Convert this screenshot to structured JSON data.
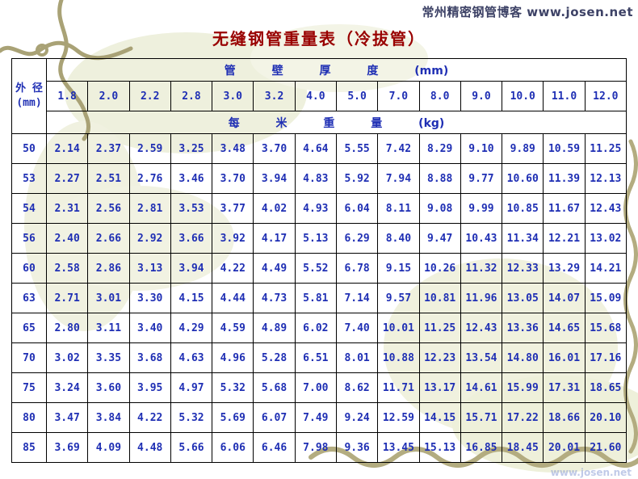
{
  "header": {
    "blog": "常州精密钢管博客 www.josen.net"
  },
  "title": "无缝钢管重量表（冷拔管）",
  "watermark": "www.josen.net",
  "colors": {
    "table_text": "#1f2fb4",
    "title_red": "#990000",
    "header_text": "#3d4266",
    "vine_olive": "#a9a276",
    "wash_beige": "#eef0dd"
  },
  "table": {
    "od_label": "外 径",
    "od_unit": "(mm)",
    "thickness_title": "管 壁 厚 度 (mm)",
    "weight_title": "每 米 重 量 (kg)",
    "thicknesses": [
      "1.8",
      "2.0",
      "2.2",
      "2.8",
      "3.0",
      "3.2",
      "4.0",
      "5.0",
      "7.0",
      "8.0",
      "9.0",
      "10.0",
      "11.0",
      "12.0"
    ],
    "rows": [
      {
        "od": "50",
        "values": [
          "2.14",
          "2.37",
          "2.59",
          "3.25",
          "3.48",
          "3.70",
          "4.64",
          "5.55",
          "7.42",
          "8.29",
          "9.10",
          "9.89",
          "10.59",
          "11.25"
        ]
      },
      {
        "od": "53",
        "values": [
          "2.27",
          "2.51",
          "2.76",
          "3.46",
          "3.70",
          "3.94",
          "4.83",
          "5.92",
          "7.94",
          "8.88",
          "9.77",
          "10.60",
          "11.39",
          "12.13"
        ]
      },
      {
        "od": "54",
        "values": [
          "2.31",
          "2.56",
          "2.81",
          "3.53",
          "3.77",
          "4.02",
          "4.93",
          "6.04",
          "8.11",
          "9.08",
          "9.99",
          "10.85",
          "11.67",
          "12.43"
        ]
      },
      {
        "od": "56",
        "values": [
          "2.40",
          "2.66",
          "2.92",
          "3.66",
          "3.92",
          "4.17",
          "5.13",
          "6.29",
          "8.40",
          "9.47",
          "10.43",
          "11.34",
          "12.21",
          "13.02"
        ]
      },
      {
        "od": "60",
        "values": [
          "2.58",
          "2.86",
          "3.13",
          "3.94",
          "4.22",
          "4.49",
          "5.52",
          "6.78",
          "9.15",
          "10.26",
          "11.32",
          "12.33",
          "13.29",
          "14.21"
        ]
      },
      {
        "od": "63",
        "values": [
          "2.71",
          "3.01",
          "3.30",
          "4.15",
          "4.44",
          "4.73",
          "5.81",
          "7.14",
          "9.57",
          "10.81",
          "11.96",
          "13.05",
          "14.07",
          "15.09"
        ]
      },
      {
        "od": "65",
        "values": [
          "2.80",
          "3.11",
          "3.40",
          "4.29",
          "4.59",
          "4.89",
          "6.02",
          "7.40",
          "10.01",
          "11.25",
          "12.43",
          "13.36",
          "14.65",
          "15.68"
        ]
      },
      {
        "od": "70",
        "values": [
          "3.02",
          "3.35",
          "3.68",
          "4.63",
          "4.96",
          "5.28",
          "6.51",
          "8.01",
          "10.88",
          "12.23",
          "13.54",
          "14.80",
          "16.01",
          "17.16"
        ]
      },
      {
        "od": "75",
        "values": [
          "3.24",
          "3.60",
          "3.95",
          "4.97",
          "5.32",
          "5.68",
          "7.00",
          "8.62",
          "11.71",
          "13.17",
          "14.61",
          "15.99",
          "17.31",
          "18.65"
        ]
      },
      {
        "od": "80",
        "values": [
          "3.47",
          "3.84",
          "4.22",
          "5.32",
          "5.69",
          "6.07",
          "7.49",
          "9.24",
          "12.59",
          "14.15",
          "15.71",
          "17.22",
          "18.66",
          "20.10"
        ]
      },
      {
        "od": "85",
        "values": [
          "3.69",
          "4.09",
          "4.48",
          "5.66",
          "6.06",
          "6.46",
          "7.98",
          "9.36",
          "13.45",
          "15.13",
          "16.85",
          "18.45",
          "20.01",
          "21.60"
        ]
      }
    ]
  }
}
